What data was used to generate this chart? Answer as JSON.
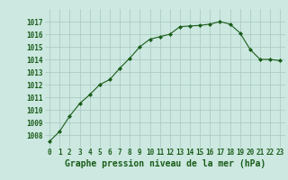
{
  "x": [
    0,
    1,
    2,
    3,
    4,
    5,
    6,
    7,
    8,
    9,
    10,
    11,
    12,
    13,
    14,
    15,
    16,
    17,
    18,
    19,
    20,
    21,
    22,
    23
  ],
  "y": [
    1007.5,
    1008.3,
    1009.5,
    1010.5,
    1011.2,
    1012.0,
    1012.4,
    1013.3,
    1014.1,
    1015.0,
    1015.6,
    1015.8,
    1016.0,
    1016.6,
    1016.65,
    1016.7,
    1016.8,
    1017.0,
    1016.8,
    1016.1,
    1014.8,
    1014.0,
    1014.0,
    1013.9
  ],
  "ylim": [
    1007,
    1018
  ],
  "xlim": [
    -0.5,
    23.5
  ],
  "yticks": [
    1008,
    1009,
    1010,
    1011,
    1012,
    1013,
    1014,
    1015,
    1016,
    1017
  ],
  "xticks": [
    0,
    1,
    2,
    3,
    4,
    5,
    6,
    7,
    8,
    9,
    10,
    11,
    12,
    13,
    14,
    15,
    16,
    17,
    18,
    19,
    20,
    21,
    22,
    23
  ],
  "xlabel": "Graphe pression niveau de la mer (hPa)",
  "line_color": "#1a5c1a",
  "marker": "D",
  "marker_size": 2.0,
  "bg_color": "#cce8e0",
  "grid_color": "#a8c8c0",
  "tick_fontsize": 5.5,
  "xlabel_fontsize": 7.0
}
